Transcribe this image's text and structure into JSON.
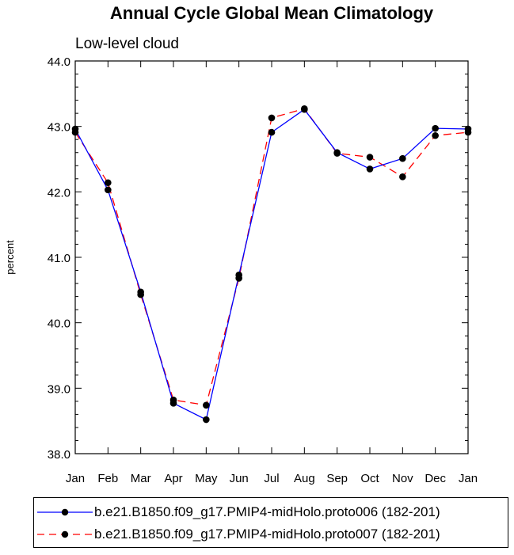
{
  "chart_data": {
    "type": "line",
    "title": "Annual Cycle Global Mean Climatology",
    "subtitle": "Low-level cloud",
    "xlabel": "",
    "ylabel": "percent",
    "categories": [
      "Jan",
      "Feb",
      "Mar",
      "Apr",
      "May",
      "Jun",
      "Jul",
      "Aug",
      "Sep",
      "Oct",
      "Nov",
      "Dec",
      "Jan"
    ],
    "ylim": [
      38.0,
      44.0
    ],
    "yticks": [
      "38.0",
      "39.0",
      "40.0",
      "41.0",
      "42.0",
      "43.0",
      "44.0"
    ],
    "series": [
      {
        "name": "b.e21.B1850.f09_g17.PMIP4-midHolo.proto006 (182-201)",
        "color": "#0000ff",
        "dash": "solid",
        "values": [
          42.96,
          42.03,
          40.47,
          38.77,
          38.52,
          40.73,
          42.91,
          43.26,
          42.6,
          42.35,
          42.51,
          42.97,
          42.96
        ]
      },
      {
        "name": "b.e21.B1850.f09_g17.PMIP4-midHolo.proto007 (182-201)",
        "color": "#ff0000",
        "dash": "dashed",
        "values": [
          42.91,
          42.14,
          40.43,
          38.82,
          38.74,
          40.68,
          43.13,
          43.27,
          42.59,
          42.53,
          42.23,
          42.86,
          42.91
        ]
      }
    ]
  }
}
